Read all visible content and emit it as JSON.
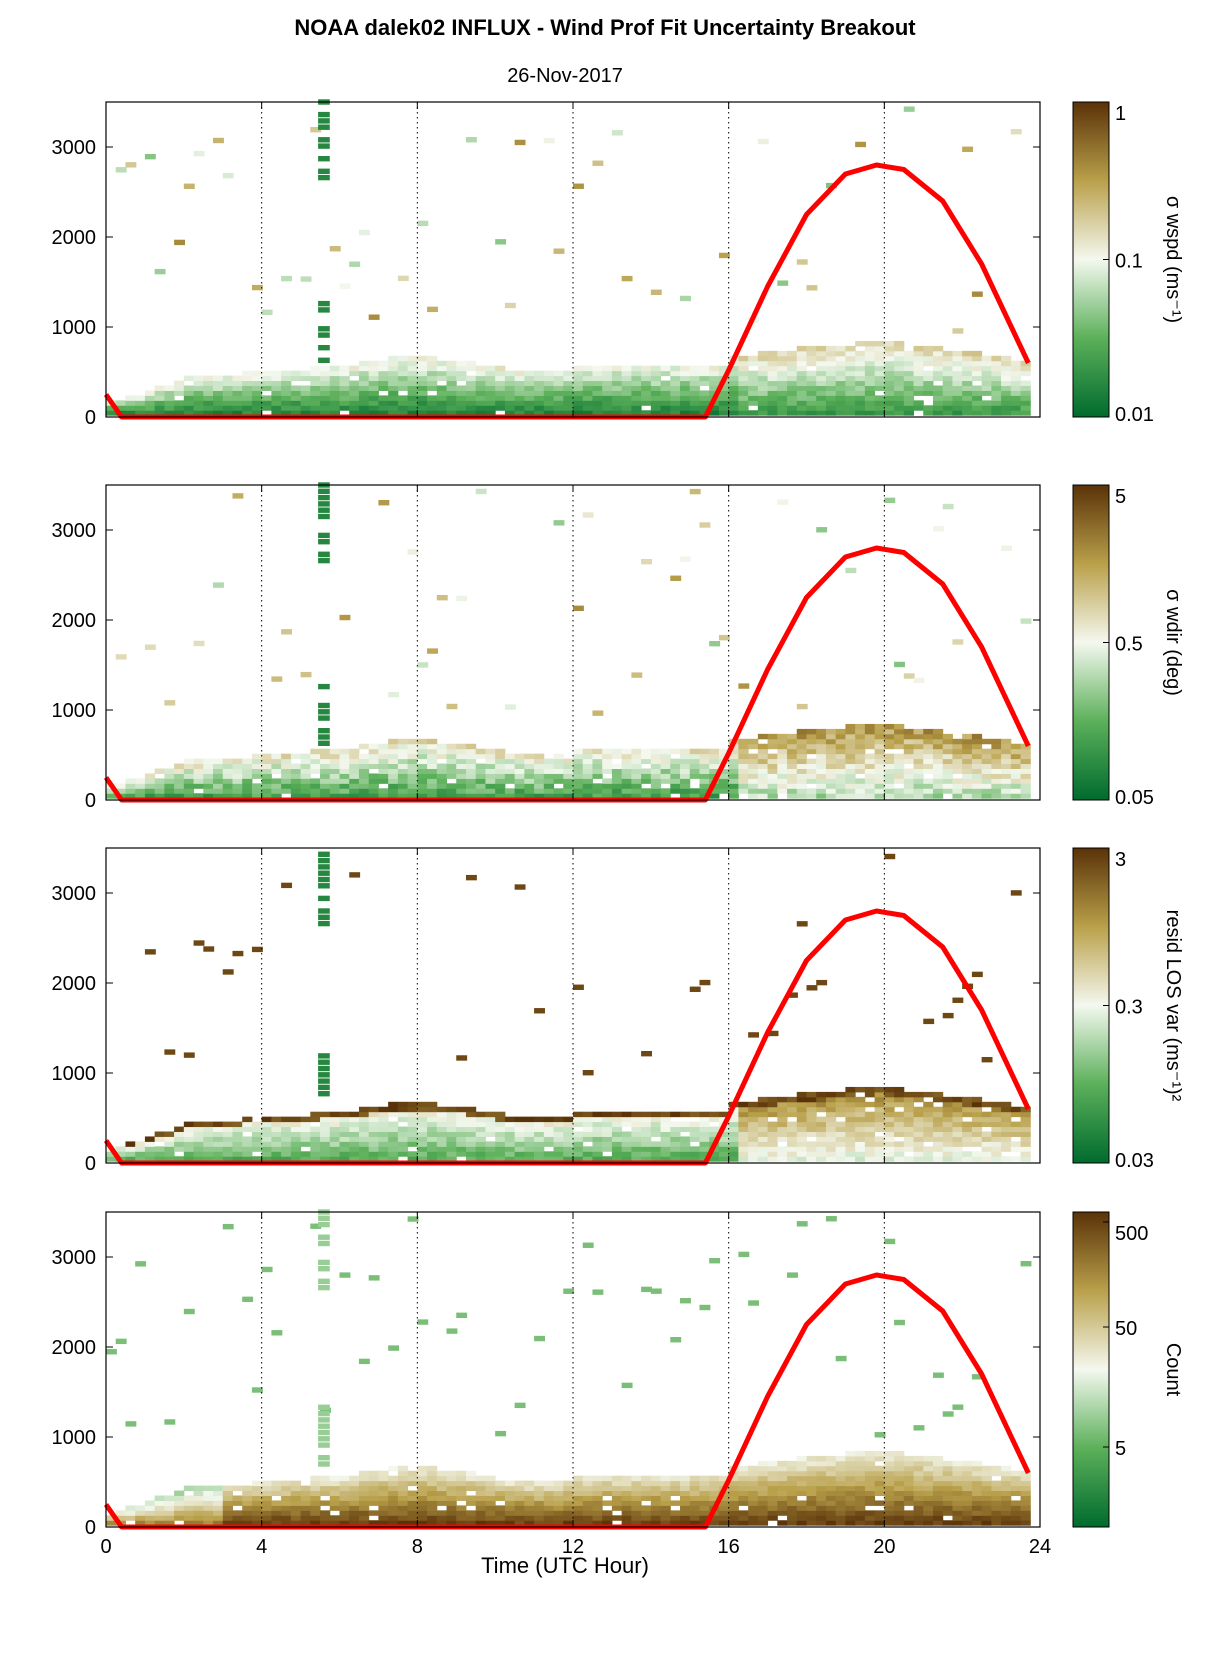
{
  "title": "NOAA dalek02 INFLUX - Wind Prof Fit Uncertainty Breakout",
  "subtitle": "26-Nov-2017",
  "xlabel": "Time (UTC Hour)",
  "colors": {
    "curve": "#ff0000",
    "low": "#006b2e",
    "mid": "#f4f8ef",
    "high": "#5a3208"
  },
  "chart_data": [
    {
      "type": "heatmap",
      "panel": "sigma-wspd",
      "colorbar_label": "σ wspd (ms⁻¹)",
      "colorbar_ticks": [
        "1",
        "0.1",
        "0.01"
      ],
      "x_ticks": [
        "0",
        "4",
        "8",
        "12",
        "16",
        "20",
        "24"
      ],
      "y_ticks": [
        "0",
        "1000",
        "2000",
        "3000"
      ],
      "xlim": [
        0,
        24
      ],
      "ylim": [
        0,
        3500
      ],
      "color_scale": "log",
      "clim": [
        0.01,
        1
      ],
      "curve": [
        [
          0,
          250
        ],
        [
          0.4,
          0
        ],
        [
          15.4,
          0
        ],
        [
          16,
          520
        ],
        [
          17,
          1450
        ],
        [
          18,
          2250
        ],
        [
          19,
          2700
        ],
        [
          19.8,
          2800
        ],
        [
          20.5,
          2750
        ],
        [
          21.5,
          2400
        ],
        [
          22.5,
          1700
        ],
        [
          23.7,
          600
        ]
      ]
    },
    {
      "type": "heatmap",
      "panel": "sigma-wdir",
      "colorbar_label": "σ wdir (deg)",
      "colorbar_ticks": [
        "5",
        "0.5",
        "0.05"
      ],
      "x_ticks": [
        "0",
        "4",
        "8",
        "12",
        "16",
        "20",
        "24"
      ],
      "y_ticks": [
        "0",
        "1000",
        "2000",
        "3000"
      ],
      "xlim": [
        0,
        24
      ],
      "ylim": [
        0,
        3500
      ],
      "color_scale": "log",
      "clim": [
        0.05,
        5
      ],
      "curve": [
        [
          0,
          250
        ],
        [
          0.4,
          0
        ],
        [
          15.4,
          0
        ],
        [
          16,
          520
        ],
        [
          17,
          1450
        ],
        [
          18,
          2250
        ],
        [
          19,
          2700
        ],
        [
          19.8,
          2800
        ],
        [
          20.5,
          2750
        ],
        [
          21.5,
          2400
        ],
        [
          22.5,
          1700
        ],
        [
          23.7,
          600
        ]
      ]
    },
    {
      "type": "heatmap",
      "panel": "resid-los-var",
      "colorbar_label": "resid LOS var (ms⁻¹)²",
      "colorbar_ticks": [
        "3",
        "0.3",
        "0.03"
      ],
      "x_ticks": [
        "0",
        "4",
        "8",
        "12",
        "16",
        "20",
        "24"
      ],
      "y_ticks": [
        "0",
        "1000",
        "2000",
        "3000"
      ],
      "xlim": [
        0,
        24
      ],
      "ylim": [
        0,
        3500
      ],
      "color_scale": "log",
      "clim": [
        0.03,
        3
      ],
      "curve": [
        [
          0,
          250
        ],
        [
          0.4,
          0
        ],
        [
          15.4,
          0
        ],
        [
          16,
          520
        ],
        [
          17,
          1450
        ],
        [
          18,
          2250
        ],
        [
          19,
          2700
        ],
        [
          19.8,
          2800
        ],
        [
          20.5,
          2750
        ],
        [
          21.5,
          2400
        ],
        [
          22.5,
          1700
        ],
        [
          23.7,
          600
        ]
      ]
    },
    {
      "type": "heatmap",
      "panel": "count",
      "colorbar_label": "Count",
      "colorbar_ticks": [
        "500",
        "50",
        "5"
      ],
      "x_ticks": [
        "0",
        "4",
        "8",
        "12",
        "16",
        "20",
        "24"
      ],
      "y_ticks": [
        "0",
        "1000",
        "2000",
        "3000"
      ],
      "xlim": [
        0,
        24
      ],
      "ylim": [
        0,
        3500
      ],
      "color_scale": "log",
      "clim": [
        1,
        500
      ],
      "curve": [
        [
          0,
          250
        ],
        [
          0.4,
          0
        ],
        [
          15.4,
          0
        ],
        [
          16,
          520
        ],
        [
          17,
          1450
        ],
        [
          18,
          2250
        ],
        [
          19,
          2700
        ],
        [
          19.8,
          2800
        ],
        [
          20.5,
          2750
        ],
        [
          21.5,
          2400
        ],
        [
          22.5,
          1700
        ],
        [
          23.7,
          600
        ]
      ]
    }
  ]
}
